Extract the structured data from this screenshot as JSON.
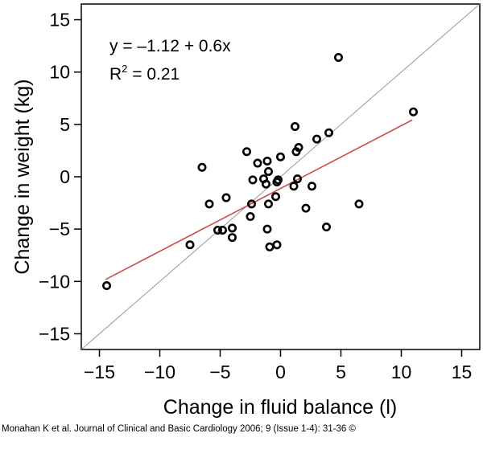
{
  "chart_data": {
    "type": "scatter",
    "xlabel": "Change in fluid balance (l)",
    "ylabel": "Change in weight (kg)",
    "xlim": [
      -16.5,
      16.5
    ],
    "ylim": [
      -16.5,
      16.5
    ],
    "x_ticks": [
      -15,
      -10,
      -5,
      0,
      5,
      10,
      15
    ],
    "y_ticks": [
      -15,
      -10,
      -5,
      0,
      5,
      10,
      15
    ],
    "x_tick_labels": [
      "−15",
      "−10",
      "−5",
      "0",
      "5",
      "10",
      "15"
    ],
    "y_tick_labels": [
      "−15",
      "−10",
      "−5",
      "0",
      "5",
      "10",
      "15"
    ],
    "grid": false,
    "equation_text": "y = –1.12 + 0.6x",
    "r2_prefix": "R",
    "r2_sup": "2",
    "r2_suffix": " = 0.21",
    "regression": {
      "intercept": -1.12,
      "slope": 0.6,
      "x_start": -14.5,
      "x_end": 10.9
    },
    "identity_line": true,
    "points": [
      {
        "x": -14.4,
        "y": -10.4
      },
      {
        "x": -7.5,
        "y": -6.5
      },
      {
        "x": -6.5,
        "y": 0.9
      },
      {
        "x": -5.9,
        "y": -2.6
      },
      {
        "x": -5.2,
        "y": -5.1
      },
      {
        "x": -4.8,
        "y": -5.1
      },
      {
        "x": -4.5,
        "y": -2.0
      },
      {
        "x": -4.0,
        "y": -4.9
      },
      {
        "x": -4.0,
        "y": -5.8
      },
      {
        "x": -2.8,
        "y": 2.4
      },
      {
        "x": -2.5,
        "y": -3.8
      },
      {
        "x": -2.4,
        "y": -2.6
      },
      {
        "x": -2.3,
        "y": -0.3
      },
      {
        "x": -1.9,
        "y": 1.3
      },
      {
        "x": -1.4,
        "y": -0.2
      },
      {
        "x": -1.2,
        "y": -0.7
      },
      {
        "x": -1.1,
        "y": 1.5
      },
      {
        "x": -1.1,
        "y": -5.0
      },
      {
        "x": -1.0,
        "y": -2.6
      },
      {
        "x": -1.0,
        "y": 0.5
      },
      {
        "x": -0.9,
        "y": -6.7
      },
      {
        "x": -0.4,
        "y": -1.9
      },
      {
        "x": -0.3,
        "y": -6.5
      },
      {
        "x": -0.3,
        "y": -0.5
      },
      {
        "x": -0.2,
        "y": -0.3
      },
      {
        "x": 0.0,
        "y": 1.9
      },
      {
        "x": 1.1,
        "y": -0.9
      },
      {
        "x": 1.2,
        "y": 4.8
      },
      {
        "x": 1.3,
        "y": 2.4
      },
      {
        "x": 1.4,
        "y": -0.2
      },
      {
        "x": 1.5,
        "y": 2.8
      },
      {
        "x": 2.1,
        "y": -3.0
      },
      {
        "x": 2.6,
        "y": -0.9
      },
      {
        "x": 3.0,
        "y": 3.6
      },
      {
        "x": 3.8,
        "y": -4.8
      },
      {
        "x": 4.0,
        "y": 4.2
      },
      {
        "x": 4.8,
        "y": 11.4
      },
      {
        "x": 6.5,
        "y": -2.6
      },
      {
        "x": 11.0,
        "y": 6.2
      }
    ],
    "colors": {
      "regression": "#cc4b4b",
      "identity": "#999999",
      "points": "#000000",
      "axes": "#000000"
    }
  },
  "citation": "Monahan K et al. Journal of Clinical and Basic Cardiology 2006; 9 (Issue 1-4): 31-36 ©"
}
